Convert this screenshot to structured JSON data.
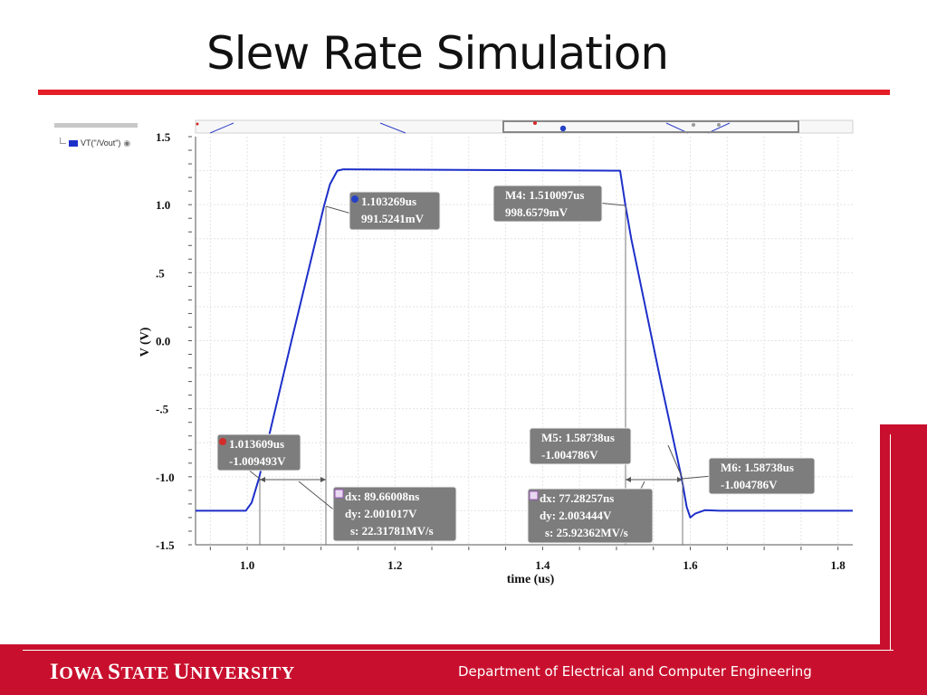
{
  "slide": {
    "title": "Slew Rate Simulation",
    "footer": {
      "university_parts": [
        {
          "cap": "I",
          "rest": "OWA"
        },
        {
          "cap": "S",
          "rest": "TATE"
        },
        {
          "cap": "U",
          "rest": "NIVERSITY"
        }
      ],
      "department": "Department of Electrical and Computer Engineering"
    },
    "colors": {
      "accent_red": "#e41e26",
      "footer_red": "#c8102e",
      "waveform": "#1d2fc9",
      "marker_box": "#7d7d7d"
    }
  },
  "legend": {
    "label": "VT(\"/Vout\")",
    "icon": "eye-icon"
  },
  "chart_data": {
    "type": "line",
    "xlabel": "time (us)",
    "ylabel": "V (V)",
    "xlim": [
      0.93,
      1.82
    ],
    "ylim": [
      -1.5,
      1.5
    ],
    "x_ticks": [
      {
        "value": 1.0,
        "label": "1.0"
      },
      {
        "value": 1.2,
        "label": "1.2"
      },
      {
        "value": 1.4,
        "label": "1.4"
      },
      {
        "value": 1.6,
        "label": "1.6"
      },
      {
        "value": 1.8,
        "label": "1.8"
      }
    ],
    "y_ticks": [
      {
        "value": 1.5,
        "label": "1.5"
      },
      {
        "value": 1.0,
        "label": "1.0"
      },
      {
        "value": 0.5,
        "label": ".5"
      },
      {
        "value": 0.0,
        "label": "0.0"
      },
      {
        "value": -0.5,
        "label": "-.5"
      },
      {
        "value": -1.0,
        "label": "-1.0"
      },
      {
        "value": -1.5,
        "label": "-1.5"
      }
    ],
    "grid": true,
    "series": [
      {
        "name": "VT(\"/Vout\")",
        "x": [
          0.93,
          0.998,
          1.006,
          1.016,
          1.06,
          1.104,
          1.112,
          1.122,
          1.13,
          1.505,
          1.512,
          1.52,
          1.56,
          1.588,
          1.595,
          1.6,
          1.607,
          1.62,
          1.64,
          1.82
        ],
        "y": [
          -1.25,
          -1.25,
          -1.19,
          -1.009,
          0.0,
          0.99,
          1.15,
          1.25,
          1.26,
          1.25,
          0.998,
          0.75,
          -0.3,
          -1.005,
          -1.22,
          -1.3,
          -1.27,
          -1.245,
          -1.25,
          -1.25
        ]
      }
    ],
    "annotations": [
      {
        "id": "m1",
        "lines": [
          "1.103269us",
          "991.5241mV"
        ],
        "badge": "B",
        "badge_color": "#2642c4",
        "at": [
          1.103269,
          0.9915
        ]
      },
      {
        "id": "m4",
        "lines": [
          "M4: 1.510097us",
          "998.6579mV"
        ],
        "badge": "",
        "at": [
          1.510097,
          0.9987
        ]
      },
      {
        "id": "m0",
        "lines": [
          "1.013609us",
          "-1.009493V"
        ],
        "badge": "A",
        "badge_color": "#d42a2a",
        "at": [
          1.013609,
          -1.0095
        ]
      },
      {
        "id": "m5",
        "lines": [
          "M5: 1.58738us",
          "-1.004786V"
        ],
        "badge": "",
        "at": [
          1.58738,
          -1.0048
        ]
      },
      {
        "id": "m6",
        "lines": [
          "M6: 1.58738us",
          "-1.004786V"
        ],
        "badge": "",
        "at": [
          1.58738,
          -1.0048
        ]
      },
      {
        "id": "delta-rise",
        "lines": [
          "dx: 89.66008ns",
          "dy: 2.001017V",
          "s: 22.31781MV/s"
        ],
        "badge": "Δ",
        "badge_color": "#9b59b6"
      },
      {
        "id": "delta-fall",
        "lines": [
          "dx: 77.28257ns",
          "dy: 2.003444V",
          "s: 25.92362MV/s"
        ],
        "badge": "Δ",
        "badge_color": "#9b59b6"
      }
    ]
  }
}
